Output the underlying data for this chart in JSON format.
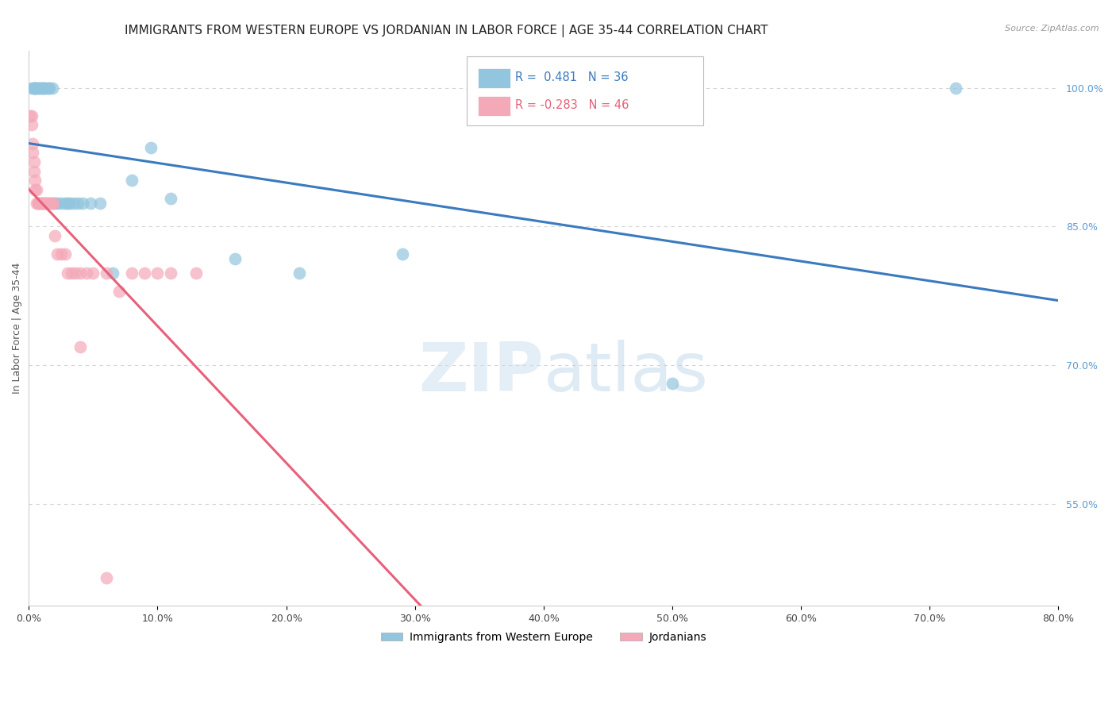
{
  "title": "IMMIGRANTS FROM WESTERN EUROPE VS JORDANIAN IN LABOR FORCE | AGE 35-44 CORRELATION CHART",
  "source": "Source: ZipAtlas.com",
  "ylabel": "In Labor Force | Age 35-44",
  "blue_label": "Immigrants from Western Europe",
  "pink_label": "Jordanians",
  "xmin": 0.0,
  "xmax": 0.8,
  "ymin": 0.44,
  "ymax": 1.04,
  "blue_R": 0.481,
  "blue_N": 36,
  "pink_R": -0.283,
  "pink_N": 46,
  "blue_color": "#92c5de",
  "pink_color": "#f4a9b8",
  "blue_line_color": "#3a7abf",
  "pink_line_color": "#e8607a",
  "watermark_color": "#d6eaf8",
  "right_axis_color": "#5b9bd5",
  "grid_color": "#d5d5d5",
  "background_color": "#ffffff",
  "ytick_vals": [
    0.55,
    0.7,
    0.85,
    1.0
  ],
  "ytick_labels": [
    "55.0%",
    "70.0%",
    "85.0%",
    "100.0%"
  ],
  "xtick_vals": [
    0.0,
    0.1,
    0.2,
    0.3,
    0.4,
    0.5,
    0.6,
    0.7,
    0.8
  ],
  "xtick_labels": [
    "0.0%",
    "10.0%",
    "20.0%",
    "30.0%",
    "40.0%",
    "50.0%",
    "60.0%",
    "70.0%",
    "80.0%"
  ],
  "blue_points_x": [
    0.002,
    0.004,
    0.004,
    0.005,
    0.005,
    0.006,
    0.007,
    0.008,
    0.009,
    0.01,
    0.011,
    0.012,
    0.013,
    0.015,
    0.016,
    0.018,
    0.02,
    0.022,
    0.025,
    0.028,
    0.03,
    0.032,
    0.035,
    0.038,
    0.042,
    0.048,
    0.055,
    0.065,
    0.08,
    0.095,
    0.11,
    0.16,
    0.21,
    0.29,
    0.5,
    0.72
  ],
  "blue_points_y": [
    1.0,
    1.0,
    1.0,
    1.0,
    1.0,
    1.0,
    1.0,
    1.0,
    1.0,
    1.0,
    1.0,
    1.0,
    1.0,
    1.0,
    1.0,
    1.0,
    0.875,
    0.875,
    0.875,
    0.875,
    0.875,
    0.875,
    0.875,
    0.875,
    0.875,
    0.875,
    0.875,
    0.8,
    0.9,
    0.935,
    0.88,
    0.815,
    0.8,
    0.82,
    0.68,
    1.0
  ],
  "pink_points_x": [
    0.001,
    0.002,
    0.002,
    0.003,
    0.003,
    0.004,
    0.004,
    0.005,
    0.005,
    0.006,
    0.006,
    0.007,
    0.007,
    0.008,
    0.008,
    0.009,
    0.01,
    0.01,
    0.011,
    0.012,
    0.013,
    0.014,
    0.015,
    0.016,
    0.017,
    0.018,
    0.019,
    0.02,
    0.022,
    0.025,
    0.028,
    0.03,
    0.033,
    0.036,
    0.04,
    0.045,
    0.05,
    0.06,
    0.07,
    0.08,
    0.09,
    0.1,
    0.11,
    0.13,
    0.04,
    0.06
  ],
  "pink_points_y": [
    0.97,
    0.97,
    0.96,
    0.94,
    0.93,
    0.92,
    0.91,
    0.9,
    0.89,
    0.89,
    0.875,
    0.875,
    0.875,
    0.875,
    0.875,
    0.875,
    0.875,
    0.875,
    0.875,
    0.875,
    0.875,
    0.875,
    0.875,
    0.875,
    0.875,
    0.875,
    0.875,
    0.84,
    0.82,
    0.82,
    0.82,
    0.8,
    0.8,
    0.8,
    0.8,
    0.8,
    0.8,
    0.8,
    0.78,
    0.8,
    0.8,
    0.8,
    0.8,
    0.8,
    0.72,
    0.47
  ],
  "pink_line_solid_end": 0.35,
  "title_fontsize": 11,
  "axis_label_fontsize": 9,
  "tick_fontsize": 9,
  "source_fontsize": 8
}
